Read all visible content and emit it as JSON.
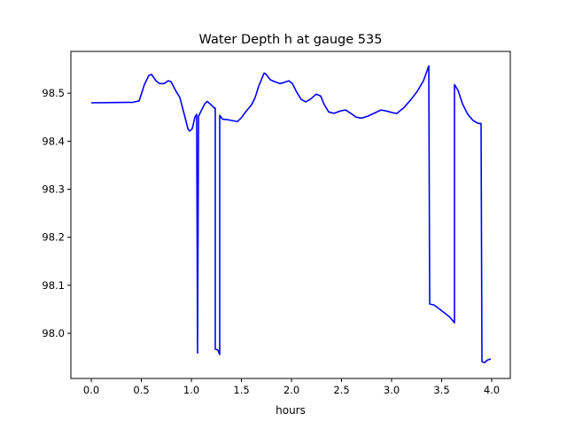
{
  "chart_data": {
    "type": "line",
    "title": "Water Depth h at gauge 535",
    "xlabel": "hours",
    "ylabel": "",
    "xlim": [
      -0.204,
      4.186
    ],
    "ylim": [
      97.906,
      98.587
    ],
    "xticks": [
      0.0,
      0.5,
      1.0,
      1.5,
      2.0,
      2.5,
      3.0,
      3.5,
      4.0
    ],
    "xtick_labels": [
      "0.0",
      "0.5",
      "1.0",
      "1.5",
      "2.0",
      "2.5",
      "3.0",
      "3.5",
      "4.0"
    ],
    "yticks": [
      98.0,
      98.1,
      98.2,
      98.3,
      98.4,
      98.5
    ],
    "ytick_labels": [
      "98.0",
      "98.1",
      "98.2",
      "98.3",
      "98.4",
      "98.5"
    ],
    "grid": false,
    "series": [
      {
        "name": "h",
        "color": "#0000ff",
        "x": [
          0.0,
          0.416,
          0.478,
          0.531,
          0.575,
          0.602,
          0.646,
          0.681,
          0.726,
          0.77,
          0.796,
          0.841,
          0.885,
          0.92,
          0.965,
          0.982,
          1.009,
          1.035,
          1.053,
          1.062,
          1.071,
          1.097,
          1.133,
          1.159,
          1.186,
          1.23,
          1.239,
          1.239,
          1.265,
          1.283,
          1.283,
          1.31,
          1.354,
          1.407,
          1.46,
          1.496,
          1.549,
          1.602,
          1.637,
          1.673,
          1.726,
          1.743,
          1.788,
          1.832,
          1.885,
          1.92,
          1.973,
          2.009,
          2.053,
          2.097,
          2.142,
          2.186,
          2.248,
          2.292,
          2.327,
          2.372,
          2.425,
          2.487,
          2.54,
          2.593,
          2.646,
          2.699,
          2.761,
          2.823,
          2.894,
          2.947,
          3.018,
          3.053,
          3.124,
          3.195,
          3.257,
          3.319,
          3.372,
          3.381,
          3.425,
          3.469,
          3.575,
          3.628,
          3.628,
          3.664,
          3.708,
          3.761,
          3.814,
          3.867,
          3.894,
          3.903,
          3.929,
          3.956,
          3.982,
          3.991
        ],
        "y": [
          98.48,
          98.481,
          98.484,
          98.518,
          98.537,
          98.539,
          98.526,
          98.52,
          98.52,
          98.526,
          98.524,
          98.506,
          98.491,
          98.463,
          98.426,
          98.421,
          98.426,
          98.45,
          98.456,
          97.959,
          98.452,
          98.463,
          98.478,
          98.483,
          98.478,
          98.469,
          98.469,
          97.967,
          97.965,
          97.956,
          98.454,
          98.446,
          98.445,
          98.443,
          98.441,
          98.448,
          98.463,
          98.476,
          98.491,
          98.515,
          98.542,
          98.54,
          98.528,
          98.524,
          98.52,
          98.522,
          98.526,
          98.52,
          98.502,
          98.487,
          98.482,
          98.487,
          98.498,
          98.494,
          98.476,
          98.461,
          98.458,
          98.463,
          98.465,
          98.458,
          98.45,
          98.448,
          98.452,
          98.458,
          98.465,
          98.463,
          98.459,
          98.458,
          98.47,
          98.487,
          98.504,
          98.526,
          98.557,
          98.061,
          98.059,
          98.052,
          98.035,
          98.022,
          98.518,
          98.506,
          98.478,
          98.456,
          98.443,
          98.437,
          98.437,
          97.941,
          97.939,
          97.944,
          97.946,
          97.946
        ]
      }
    ]
  }
}
